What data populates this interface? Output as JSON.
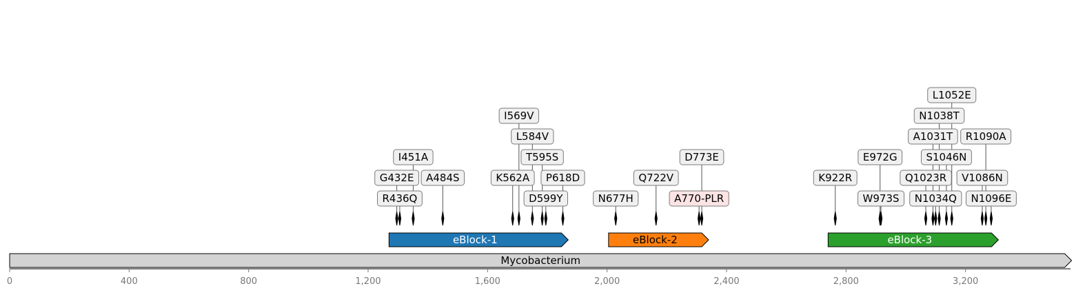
{
  "sequence": {
    "name": "Mycobacterium",
    "length": 3555,
    "fill": "#d3d3d3"
  },
  "axis": {
    "ticks": [
      0,
      400,
      800,
      1200,
      1600,
      2000,
      2400,
      2800,
      3200
    ],
    "tick_labels": [
      "0",
      "400",
      "800",
      "1,200",
      "1,600",
      "2,000",
      "2,400",
      "2,800",
      "3,200"
    ]
  },
  "blocks": [
    {
      "name": "eBlock-1",
      "start": 1270,
      "end": 1870,
      "color": "#1f77b4",
      "text_color": "#ffffff"
    },
    {
      "name": "eBlock-2",
      "start": 2005,
      "end": 2340,
      "color": "#ff7f0e",
      "text_color": "#000000"
    },
    {
      "name": "eBlock-3",
      "start": 2740,
      "end": 3310,
      "color": "#2ca02c",
      "text_color": "#ffffff"
    }
  ],
  "mutations": [
    {
      "label": "R436Q",
      "pos": 1306,
      "level": 0
    },
    {
      "label": "G432E",
      "pos": 1296,
      "level": 1
    },
    {
      "label": "I451A",
      "pos": 1351,
      "level": 2
    },
    {
      "label": "A484S",
      "pos": 1450,
      "level": 1
    },
    {
      "label": "K562A",
      "pos": 1684,
      "level": 1
    },
    {
      "label": "I569V",
      "pos": 1705,
      "level": 4
    },
    {
      "label": "L584V",
      "pos": 1750,
      "level": 3
    },
    {
      "label": "D599Y",
      "pos": 1795,
      "level": 0
    },
    {
      "label": "T595S",
      "pos": 1783,
      "level": 2
    },
    {
      "label": "P618D",
      "pos": 1852,
      "level": 1
    },
    {
      "label": "N677H",
      "pos": 2029,
      "level": 0
    },
    {
      "label": "Q722V",
      "pos": 2164,
      "level": 1
    },
    {
      "label": "A770-PLR",
      "pos": 2308,
      "level": 0,
      "highlight": true
    },
    {
      "label": "D773E",
      "pos": 2317,
      "level": 2
    },
    {
      "label": "K922R",
      "pos": 2764,
      "level": 1
    },
    {
      "label": "W973S",
      "pos": 2917,
      "level": 0
    },
    {
      "label": "E972G",
      "pos": 2914,
      "level": 2
    },
    {
      "label": "Q1023R",
      "pos": 3067,
      "level": 1
    },
    {
      "label": "A1031T",
      "pos": 3091,
      "level": 3
    },
    {
      "label": "N1034Q",
      "pos": 3100,
      "level": 0
    },
    {
      "label": "N1038T",
      "pos": 3112,
      "level": 4
    },
    {
      "label": "S1046N",
      "pos": 3136,
      "level": 2
    },
    {
      "label": "L1052E",
      "pos": 3154,
      "level": 5
    },
    {
      "label": "V1086N",
      "pos": 3256,
      "level": 1
    },
    {
      "label": "R1090A",
      "pos": 3268,
      "level": 3
    },
    {
      "label": "N1096E",
      "pos": 3286,
      "level": 0
    }
  ]
}
